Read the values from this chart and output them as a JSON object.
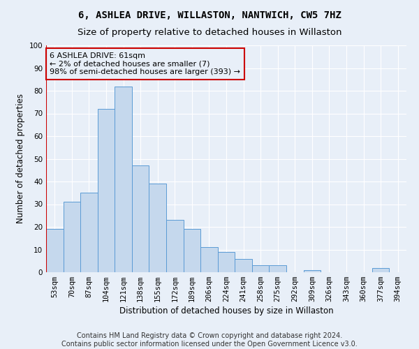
{
  "title": "6, ASHLEA DRIVE, WILLASTON, NANTWICH, CW5 7HZ",
  "subtitle": "Size of property relative to detached houses in Willaston",
  "xlabel": "Distribution of detached houses by size in Willaston",
  "ylabel": "Number of detached properties",
  "bar_labels": [
    "53sqm",
    "70sqm",
    "87sqm",
    "104sqm",
    "121sqm",
    "138sqm",
    "155sqm",
    "172sqm",
    "189sqm",
    "206sqm",
    "224sqm",
    "241sqm",
    "258sqm",
    "275sqm",
    "292sqm",
    "309sqm",
    "326sqm",
    "343sqm",
    "360sqm",
    "377sqm",
    "394sqm"
  ],
  "bar_values": [
    19,
    31,
    35,
    72,
    82,
    47,
    39,
    23,
    19,
    11,
    9,
    6,
    3,
    3,
    0,
    1,
    0,
    0,
    0,
    2,
    0
  ],
  "bar_color": "#c5d8ed",
  "bar_edge_color": "#5b9bd5",
  "annotation_line1": "6 ASHLEA DRIVE: 61sqm",
  "annotation_line2": "← 2% of detached houses are smaller (7)",
  "annotation_line3": "98% of semi-detached houses are larger (393) →",
  "vline_color": "#cc0000",
  "annotation_box_edge_color": "#cc0000",
  "ylim": [
    0,
    100
  ],
  "yticks": [
    0,
    10,
    20,
    30,
    40,
    50,
    60,
    70,
    80,
    90,
    100
  ],
  "footer_line1": "Contains HM Land Registry data © Crown copyright and database right 2024.",
  "footer_line2": "Contains public sector information licensed under the Open Government Licence v3.0.",
  "background_color": "#e8eff8",
  "grid_color": "#ffffff",
  "title_fontsize": 10,
  "subtitle_fontsize": 9.5,
  "axis_label_fontsize": 8.5,
  "tick_fontsize": 7.5,
  "annotation_fontsize": 8,
  "footer_fontsize": 7
}
